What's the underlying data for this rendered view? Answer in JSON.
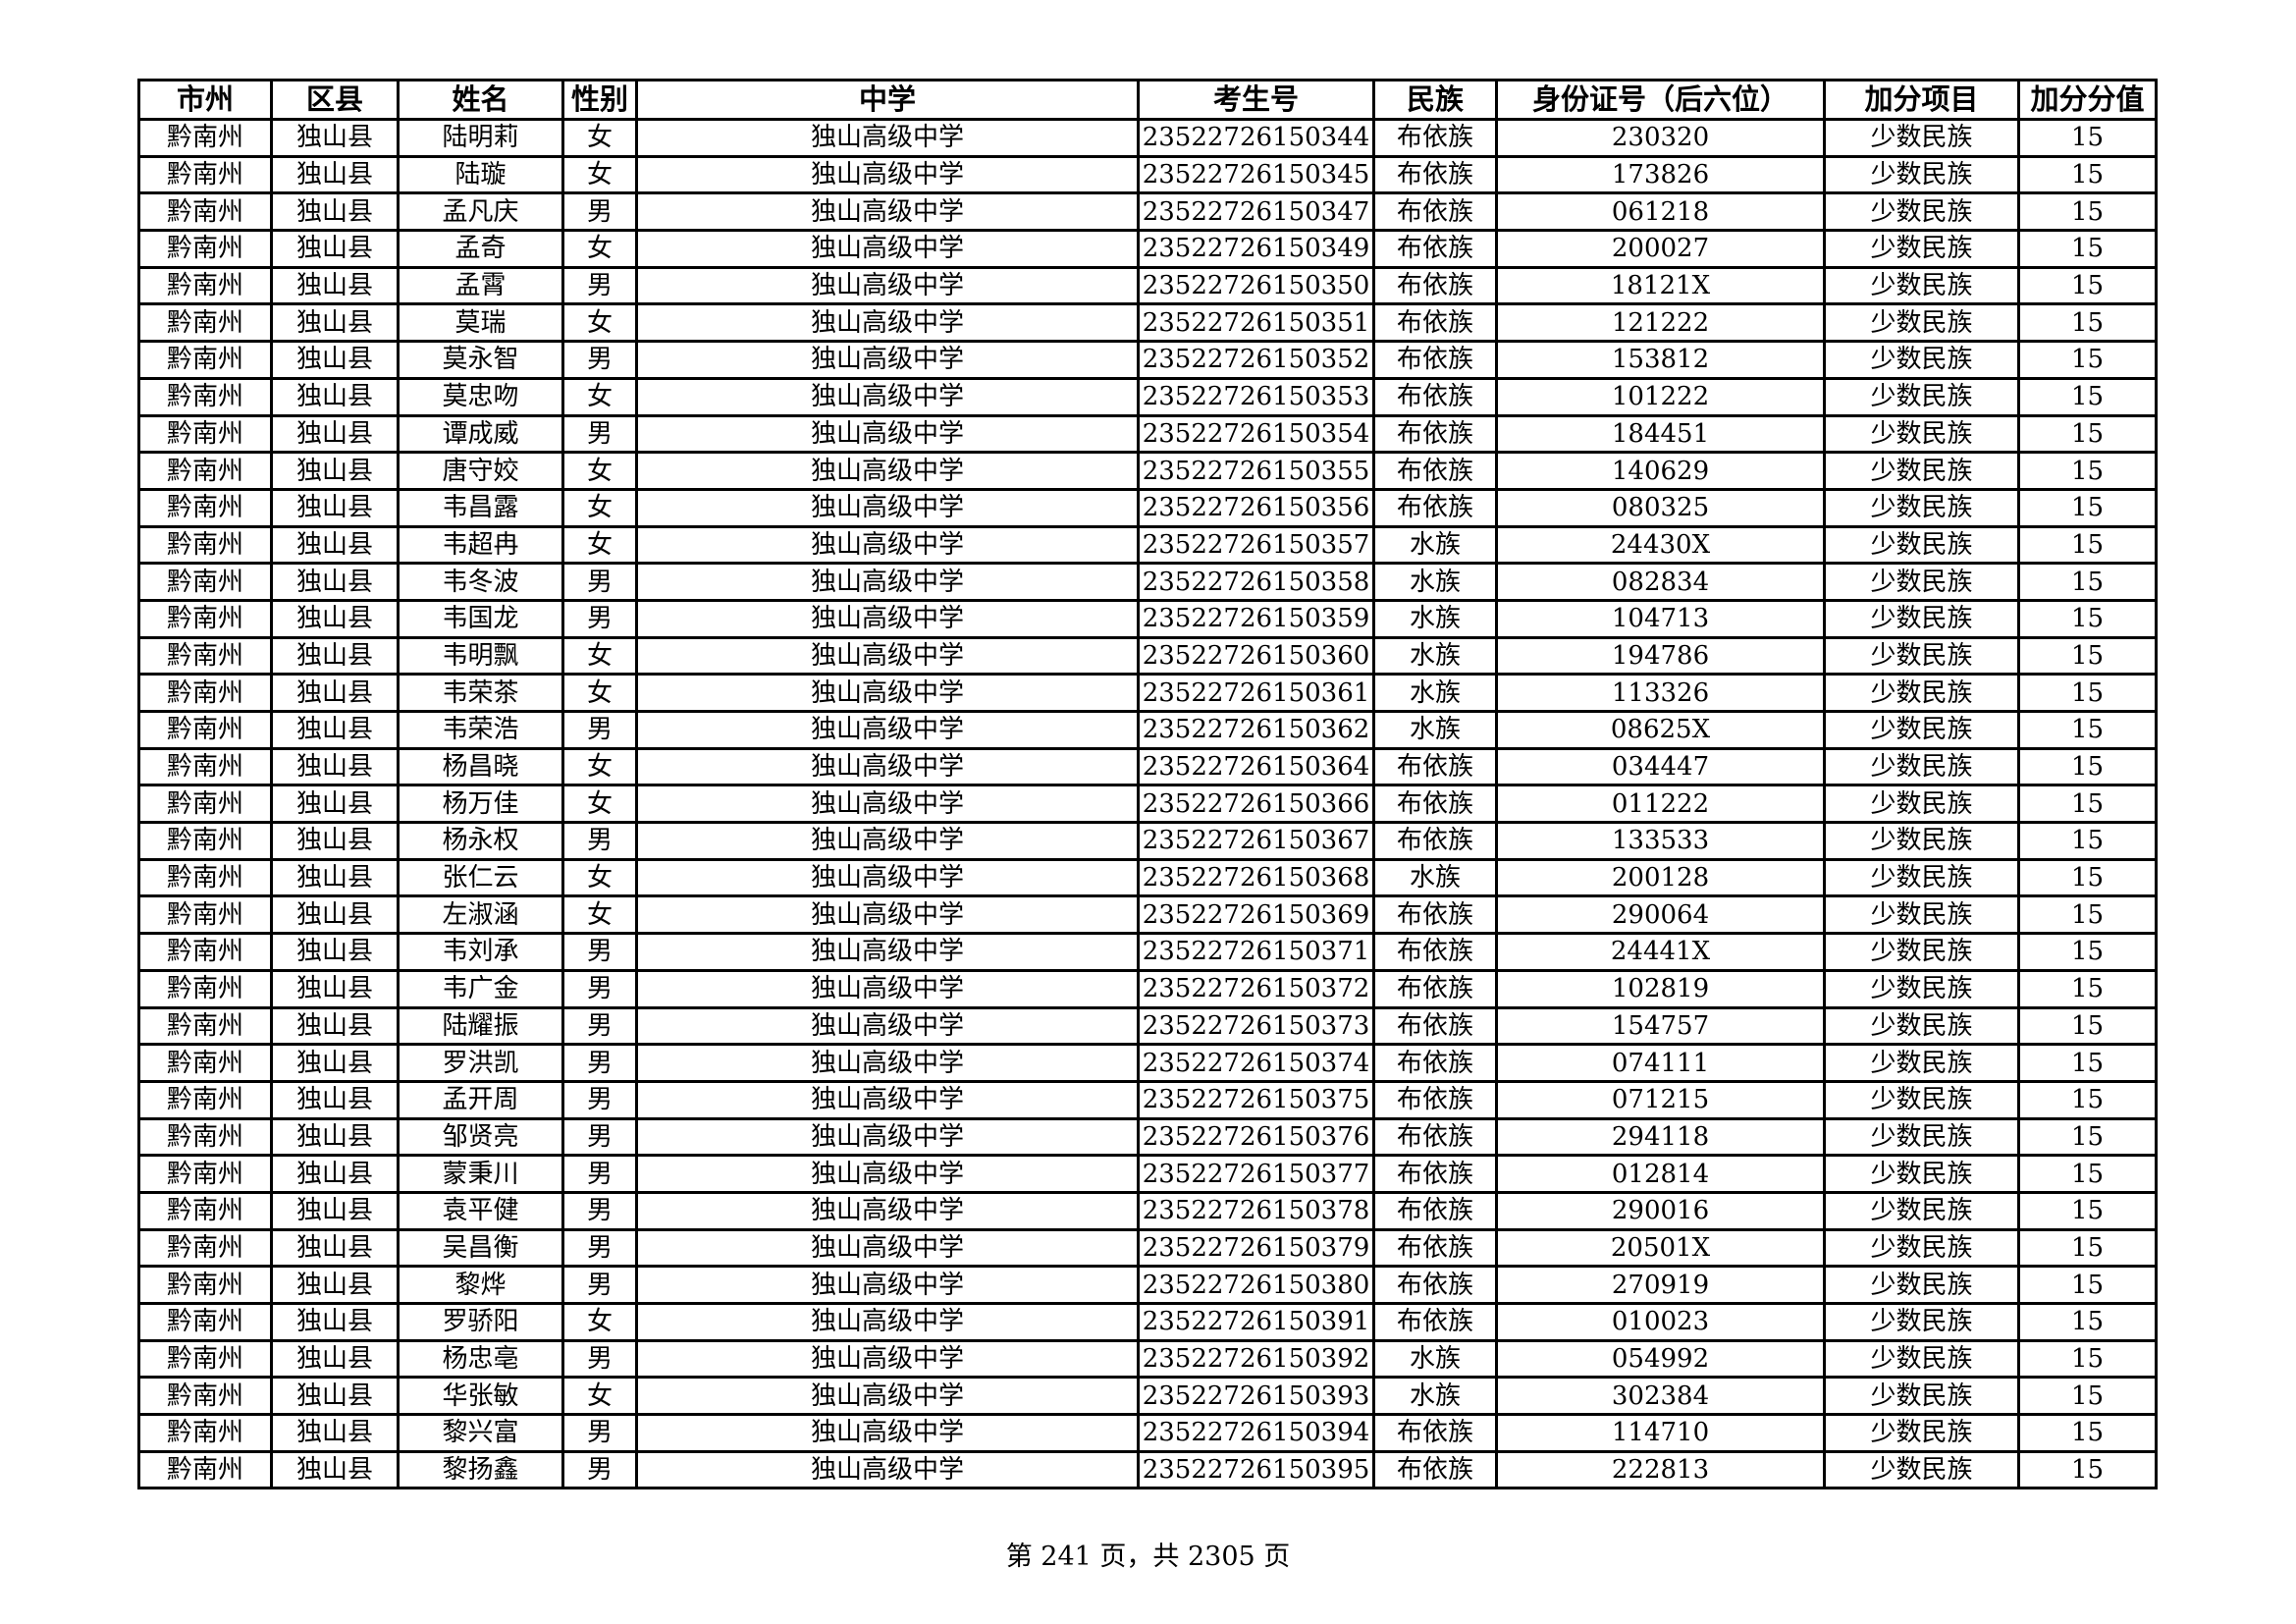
{
  "table": {
    "headers": [
      "市州",
      "区县",
      "姓名",
      "性别",
      "中学",
      "考生号",
      "民族",
      "身份证号（后六位）",
      "加分项目",
      "加分分值"
    ],
    "rows": [
      [
        "黔南州",
        "独山县",
        "陆明莉",
        "女",
        "独山高级中学",
        "23522726150344",
        "布依族",
        "230320",
        "少数民族",
        "15"
      ],
      [
        "黔南州",
        "独山县",
        "陆璇",
        "女",
        "独山高级中学",
        "23522726150345",
        "布依族",
        "173826",
        "少数民族",
        "15"
      ],
      [
        "黔南州",
        "独山县",
        "孟凡庆",
        "男",
        "独山高级中学",
        "23522726150347",
        "布依族",
        "061218",
        "少数民族",
        "15"
      ],
      [
        "黔南州",
        "独山县",
        "孟奇",
        "女",
        "独山高级中学",
        "23522726150349",
        "布依族",
        "200027",
        "少数民族",
        "15"
      ],
      [
        "黔南州",
        "独山县",
        "孟霄",
        "男",
        "独山高级中学",
        "23522726150350",
        "布依族",
        "18121X",
        "少数民族",
        "15"
      ],
      [
        "黔南州",
        "独山县",
        "莫瑞",
        "女",
        "独山高级中学",
        "23522726150351",
        "布依族",
        "121222",
        "少数民族",
        "15"
      ],
      [
        "黔南州",
        "独山县",
        "莫永智",
        "男",
        "独山高级中学",
        "23522726150352",
        "布依族",
        "153812",
        "少数民族",
        "15"
      ],
      [
        "黔南州",
        "独山县",
        "莫忠吻",
        "女",
        "独山高级中学",
        "23522726150353",
        "布依族",
        "101222",
        "少数民族",
        "15"
      ],
      [
        "黔南州",
        "独山县",
        "谭成威",
        "男",
        "独山高级中学",
        "23522726150354",
        "布依族",
        "184451",
        "少数民族",
        "15"
      ],
      [
        "黔南州",
        "独山县",
        "唐守姣",
        "女",
        "独山高级中学",
        "23522726150355",
        "布依族",
        "140629",
        "少数民族",
        "15"
      ],
      [
        "黔南州",
        "独山县",
        "韦昌露",
        "女",
        "独山高级中学",
        "23522726150356",
        "布依族",
        "080325",
        "少数民族",
        "15"
      ],
      [
        "黔南州",
        "独山县",
        "韦超冉",
        "女",
        "独山高级中学",
        "23522726150357",
        "水族",
        "24430X",
        "少数民族",
        "15"
      ],
      [
        "黔南州",
        "独山县",
        "韦冬波",
        "男",
        "独山高级中学",
        "23522726150358",
        "水族",
        "082834",
        "少数民族",
        "15"
      ],
      [
        "黔南州",
        "独山县",
        "韦国龙",
        "男",
        "独山高级中学",
        "23522726150359",
        "水族",
        "104713",
        "少数民族",
        "15"
      ],
      [
        "黔南州",
        "独山县",
        "韦明飘",
        "女",
        "独山高级中学",
        "23522726150360",
        "水族",
        "194786",
        "少数民族",
        "15"
      ],
      [
        "黔南州",
        "独山县",
        "韦荣茶",
        "女",
        "独山高级中学",
        "23522726150361",
        "水族",
        "113326",
        "少数民族",
        "15"
      ],
      [
        "黔南州",
        "独山县",
        "韦荣浩",
        "男",
        "独山高级中学",
        "23522726150362",
        "水族",
        "08625X",
        "少数民族",
        "15"
      ],
      [
        "黔南州",
        "独山县",
        "杨昌晓",
        "女",
        "独山高级中学",
        "23522726150364",
        "布依族",
        "034447",
        "少数民族",
        "15"
      ],
      [
        "黔南州",
        "独山县",
        "杨万佳",
        "女",
        "独山高级中学",
        "23522726150366",
        "布依族",
        "011222",
        "少数民族",
        "15"
      ],
      [
        "黔南州",
        "独山县",
        "杨永权",
        "男",
        "独山高级中学",
        "23522726150367",
        "布依族",
        "133533",
        "少数民族",
        "15"
      ],
      [
        "黔南州",
        "独山县",
        "张仁云",
        "女",
        "独山高级中学",
        "23522726150368",
        "水族",
        "200128",
        "少数民族",
        "15"
      ],
      [
        "黔南州",
        "独山县",
        "左淑涵",
        "女",
        "独山高级中学",
        "23522726150369",
        "布依族",
        "290064",
        "少数民族",
        "15"
      ],
      [
        "黔南州",
        "独山县",
        "韦刘承",
        "男",
        "独山高级中学",
        "23522726150371",
        "布依族",
        "24441X",
        "少数民族",
        "15"
      ],
      [
        "黔南州",
        "独山县",
        "韦广金",
        "男",
        "独山高级中学",
        "23522726150372",
        "布依族",
        "102819",
        "少数民族",
        "15"
      ],
      [
        "黔南州",
        "独山县",
        "陆耀振",
        "男",
        "独山高级中学",
        "23522726150373",
        "布依族",
        "154757",
        "少数民族",
        "15"
      ],
      [
        "黔南州",
        "独山县",
        "罗洪凯",
        "男",
        "独山高级中学",
        "23522726150374",
        "布依族",
        "074111",
        "少数民族",
        "15"
      ],
      [
        "黔南州",
        "独山县",
        "孟开周",
        "男",
        "独山高级中学",
        "23522726150375",
        "布依族",
        "071215",
        "少数民族",
        "15"
      ],
      [
        "黔南州",
        "独山县",
        "邹贤亮",
        "男",
        "独山高级中学",
        "23522726150376",
        "布依族",
        "294118",
        "少数民族",
        "15"
      ],
      [
        "黔南州",
        "独山县",
        "蒙秉川",
        "男",
        "独山高级中学",
        "23522726150377",
        "布依族",
        "012814",
        "少数民族",
        "15"
      ],
      [
        "黔南州",
        "独山县",
        "袁平健",
        "男",
        "独山高级中学",
        "23522726150378",
        "布依族",
        "290016",
        "少数民族",
        "15"
      ],
      [
        "黔南州",
        "独山县",
        "吴昌衡",
        "男",
        "独山高级中学",
        "23522726150379",
        "布依族",
        "20501X",
        "少数民族",
        "15"
      ],
      [
        "黔南州",
        "独山县",
        "黎烨",
        "男",
        "独山高级中学",
        "23522726150380",
        "布依族",
        "270919",
        "少数民族",
        "15"
      ],
      [
        "黔南州",
        "独山县",
        "罗骄阳",
        "女",
        "独山高级中学",
        "23522726150391",
        "布依族",
        "010023",
        "少数民族",
        "15"
      ],
      [
        "黔南州",
        "独山县",
        "杨忠亳",
        "男",
        "独山高级中学",
        "23522726150392",
        "水族",
        "054992",
        "少数民族",
        "15"
      ],
      [
        "黔南州",
        "独山县",
        "华张敏",
        "女",
        "独山高级中学",
        "23522726150393",
        "水族",
        "302384",
        "少数民族",
        "15"
      ],
      [
        "黔南州",
        "独山县",
        "黎兴富",
        "男",
        "独山高级中学",
        "23522726150394",
        "布依族",
        "114710",
        "少数民族",
        "15"
      ],
      [
        "黔南州",
        "独山县",
        "黎扬鑫",
        "男",
        "独山高级中学",
        "23522726150395",
        "布依族",
        "222813",
        "少数民族",
        "15"
      ]
    ]
  },
  "footer": {
    "page_text": "第 241 页，共 2305 页"
  }
}
